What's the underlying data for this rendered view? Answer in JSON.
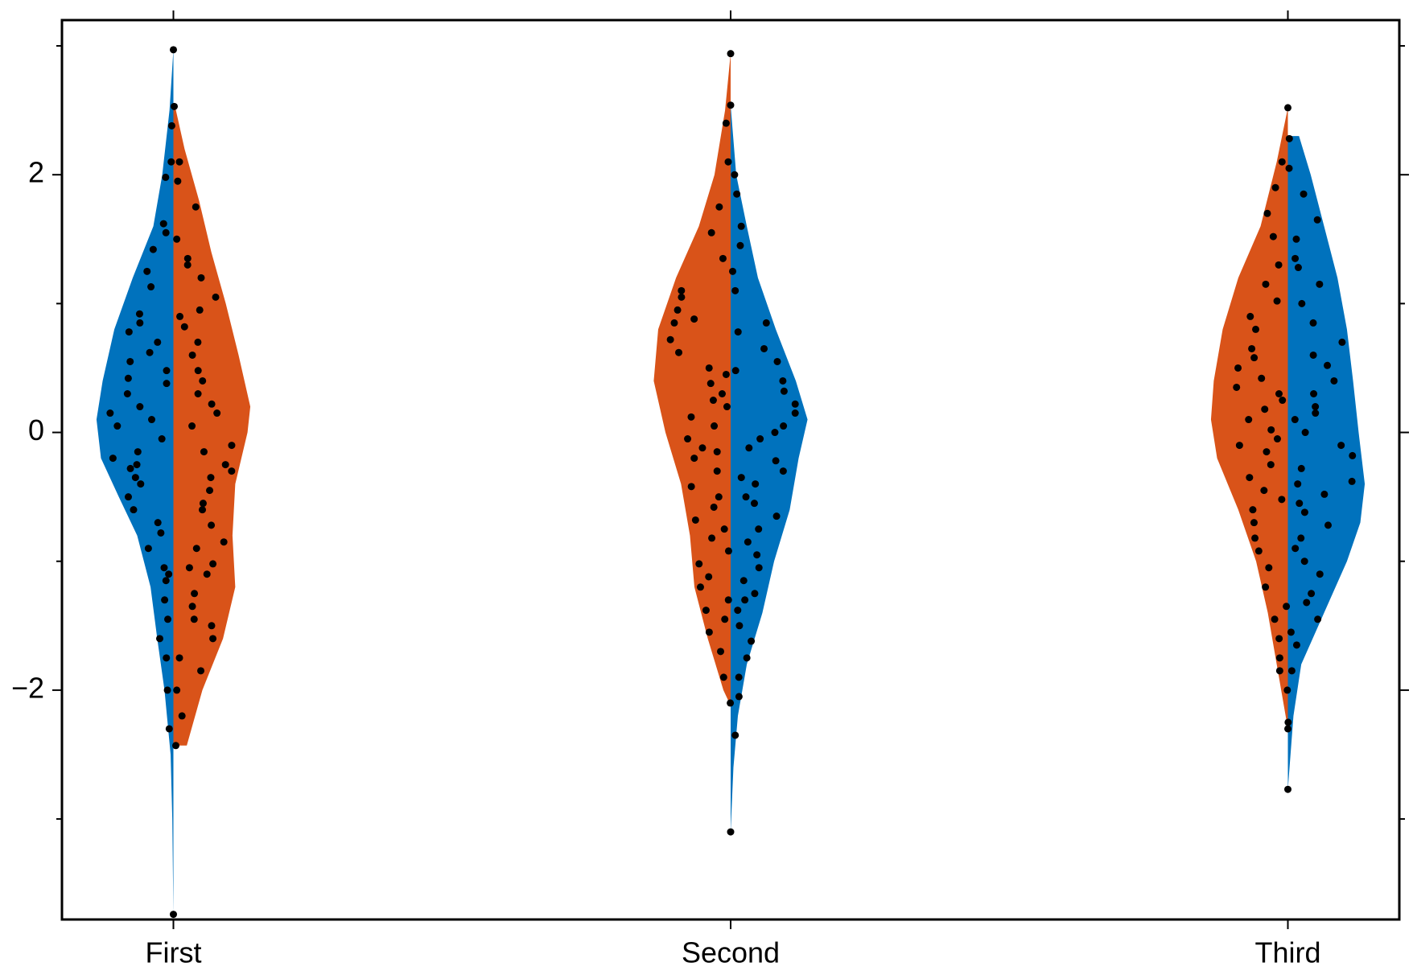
{
  "chart_data": {
    "type": "split-violin",
    "categories": [
      "First",
      "Second",
      "Third"
    ],
    "xlim": [
      0.8,
      3.2
    ],
    "xticks": [
      1,
      2,
      3
    ],
    "ylim": [
      -3.78,
      3.2
    ],
    "yticks": [
      {
        "value": -2,
        "label": "−2"
      },
      0,
      2
    ],
    "minor_yticks": [
      -3,
      -1,
      1,
      3
    ],
    "violins": [
      {
        "side": "left",
        "color": "#0072bd",
        "position": 1,
        "profile_y": [
          2.97,
          2.5,
          2.0,
          1.6,
          1.2,
          0.8,
          0.4,
          0.1,
          -0.2,
          -0.5,
          -0.8,
          -1.2,
          -1.6,
          -2.0,
          -2.5,
          -3.0,
          -3.74
        ],
        "profile_width": [
          0,
          0.007,
          0.02,
          0.036,
          0.073,
          0.106,
          0.127,
          0.138,
          0.13,
          0.098,
          0.065,
          0.041,
          0.029,
          0.016,
          0.005,
          0.002,
          0
        ],
        "points": [
          2.97,
          -3.74,
          2.38,
          2.1,
          1.98,
          1.62,
          1.55,
          1.42,
          1.25,
          1.13,
          0.92,
          0.85,
          0.78,
          0.7,
          0.62,
          0.55,
          0.42,
          0.38,
          0.3,
          0.2,
          0.15,
          0.05,
          -0.05,
          -0.15,
          -0.2,
          -0.28,
          -0.35,
          -0.4,
          -0.5,
          -0.6,
          -0.7,
          -0.78,
          -0.9,
          -1.05,
          -1.1,
          -1.15,
          -1.3,
          -1.45,
          -1.6,
          -1.75,
          -2.0,
          -2.3,
          0.48,
          0.1,
          -0.25
        ]
      },
      {
        "side": "right",
        "color": "#d95319",
        "position": 1,
        "profile_y": [
          2.53,
          2.2,
          1.8,
          1.4,
          1.0,
          0.6,
          0.2,
          0,
          -0.4,
          -0.8,
          -1.2,
          -1.6,
          -2.0,
          -2.43
        ],
        "profile_width": [
          0.003,
          0.02,
          0.046,
          0.068,
          0.094,
          0.117,
          0.138,
          0.133,
          0.111,
          0.106,
          0.111,
          0.089,
          0.052,
          0.024
        ],
        "points": [
          2.53,
          2.1,
          1.95,
          1.75,
          1.5,
          1.35,
          1.3,
          1.2,
          1.05,
          0.95,
          0.82,
          0.7,
          0.6,
          0.48,
          0.4,
          0.3,
          0.22,
          0.15,
          0.05,
          -0.1,
          -0.15,
          -0.25,
          -0.35,
          -0.45,
          -0.55,
          -0.6,
          -0.72,
          -0.85,
          -0.9,
          -1.02,
          -1.05,
          -1.1,
          -1.25,
          -1.35,
          -1.45,
          -1.5,
          -1.6,
          -1.75,
          -1.85,
          -2.0,
          -2.2,
          -2.43,
          0.9,
          -0.3
        ]
      },
      {
        "side": "left",
        "color": "#d95319",
        "position": 2,
        "profile_y": [
          2.94,
          2.5,
          2.0,
          1.6,
          1.2,
          0.8,
          0.4,
          0.0,
          -0.4,
          -0.8,
          -1.2,
          -1.6,
          -2.0,
          -2.12
        ],
        "profile_width": [
          0,
          0.01,
          0.029,
          0.057,
          0.098,
          0.13,
          0.138,
          0.117,
          0.089,
          0.073,
          0.065,
          0.041,
          0.013,
          0
        ],
        "points": [
          2.94,
          2.4,
          2.1,
          1.75,
          1.55,
          1.35,
          1.1,
          1.05,
          0.95,
          0.85,
          0.72,
          0.62,
          0.5,
          0.45,
          0.38,
          0.3,
          0.2,
          0.12,
          0.05,
          -0.05,
          -0.12,
          -0.2,
          -0.3,
          -0.42,
          -0.5,
          -0.58,
          -0.68,
          -0.75,
          -0.82,
          -0.92,
          -1.02,
          -1.12,
          -1.2,
          -1.3,
          -1.38,
          -1.45,
          -1.55,
          -1.7,
          -1.9,
          -2.1,
          0.25,
          -0.15,
          0.88
        ]
      },
      {
        "side": "right",
        "color": "#0072bd",
        "position": 2,
        "profile_y": [
          2.54,
          2.0,
          1.6,
          1.2,
          0.8,
          0.4,
          0.1,
          -0.2,
          -0.6,
          -1.0,
          -1.4,
          -1.8,
          -2.2,
          -2.6,
          -3.1
        ],
        "profile_width": [
          0,
          0.01,
          0.029,
          0.049,
          0.081,
          0.117,
          0.138,
          0.122,
          0.106,
          0.078,
          0.057,
          0.029,
          0.013,
          0.005,
          0
        ],
        "points": [
          2.54,
          2.0,
          1.85,
          1.6,
          1.45,
          1.25,
          1.1,
          0.85,
          0.78,
          0.65,
          0.55,
          0.48,
          0.4,
          0.32,
          0.22,
          0.15,
          0.05,
          -0.05,
          -0.12,
          -0.22,
          -0.3,
          -0.4,
          -0.5,
          -0.55,
          -0.65,
          -0.75,
          -0.85,
          -0.95,
          -1.05,
          -1.15,
          -1.25,
          -1.3,
          -1.38,
          -1.5,
          -1.62,
          -1.75,
          -1.9,
          -2.05,
          -2.35,
          -3.1,
          0.0,
          -0.35
        ]
      },
      {
        "side": "left",
        "color": "#d95319",
        "position": 3,
        "profile_y": [
          2.52,
          2.1,
          1.6,
          1.2,
          0.8,
          0.4,
          0.1,
          -0.2,
          -0.6,
          -1.0,
          -1.4,
          -1.8,
          -2.3
        ],
        "profile_width": [
          0,
          0.02,
          0.049,
          0.089,
          0.117,
          0.133,
          0.138,
          0.127,
          0.089,
          0.057,
          0.036,
          0.02,
          0
        ],
        "points": [
          2.52,
          2.1,
          1.9,
          1.7,
          1.52,
          1.3,
          1.15,
          1.02,
          0.9,
          0.8,
          0.65,
          0.58,
          0.5,
          0.42,
          0.35,
          0.25,
          0.18,
          0.1,
          0.02,
          -0.1,
          -0.15,
          -0.25,
          -0.35,
          -0.45,
          -0.52,
          -0.6,
          -0.7,
          -0.82,
          -0.92,
          -1.05,
          -1.2,
          -1.35,
          -1.45,
          -1.6,
          -1.75,
          -1.85,
          -2.0,
          -2.3,
          0.3,
          -0.05
        ]
      },
      {
        "side": "right",
        "color": "#0072bd",
        "position": 3,
        "profile_y": [
          2.3,
          2.0,
          1.6,
          1.2,
          0.8,
          0.4,
          0.0,
          -0.4,
          -0.7,
          -1.0,
          -1.4,
          -1.8,
          -2.2,
          -2.77
        ],
        "profile_width": [
          0.02,
          0.041,
          0.065,
          0.089,
          0.106,
          0.117,
          0.127,
          0.138,
          0.13,
          0.106,
          0.065,
          0.024,
          0.01,
          0
        ],
        "points": [
          2.28,
          2.05,
          1.85,
          1.65,
          1.5,
          1.35,
          1.28,
          1.15,
          1.0,
          0.85,
          0.7,
          0.6,
          0.52,
          0.4,
          0.3,
          0.2,
          0.1,
          0.0,
          -0.1,
          -0.18,
          -0.28,
          -0.38,
          -0.48,
          -0.55,
          -0.62,
          -0.72,
          -0.82,
          -0.9,
          -1.0,
          -1.1,
          -1.25,
          -1.32,
          -1.45,
          -1.55,
          -1.65,
          -1.85,
          -2.25,
          -2.77,
          0.15,
          -0.4
        ]
      }
    ]
  }
}
